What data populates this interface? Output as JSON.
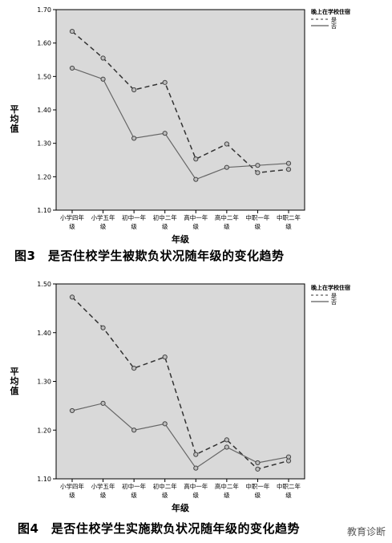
{
  "chart_data": [
    {
      "type": "line",
      "ylabel": "平均值",
      "xlabel": "年级",
      "legend_title": "晚上在学校住宿",
      "legend_position": "top-right",
      "categories": [
        "小学四年级",
        "小学五年级",
        "初中一年级",
        "初中二年级",
        "高中一年级",
        "高中二年级",
        "中职一年级",
        "中职二年级"
      ],
      "category_lines": [
        [
          "小学四年",
          "级"
        ],
        [
          "小学五年",
          "级"
        ],
        [
          "初中一年",
          "级"
        ],
        [
          "初中二年",
          "级"
        ],
        [
          "高中一年",
          "级"
        ],
        [
          "高中二年",
          "级"
        ],
        [
          "中职一年",
          "级"
        ],
        [
          "中职二年",
          "级"
        ]
      ],
      "yticks": [
        "1.10",
        "1.20",
        "1.30",
        "1.40",
        "1.50",
        "1.60",
        "1.70"
      ],
      "ylim": [
        1.1,
        1.7
      ],
      "series": [
        {
          "name": "是",
          "style": "dashed",
          "values": [
            1.635,
            1.555,
            1.46,
            1.482,
            1.253,
            1.298,
            1.212,
            1.222
          ]
        },
        {
          "name": "否",
          "style": "solid",
          "values": [
            1.525,
            1.492,
            1.315,
            1.33,
            1.192,
            1.228,
            1.234,
            1.24
          ]
        }
      ],
      "caption": "图3　是否住校学生被欺负状况随年级的变化趋势"
    },
    {
      "type": "line",
      "ylabel": "平均值",
      "xlabel": "年级",
      "legend_title": "晚上在学校住宿",
      "legend_position": "top-right",
      "categories": [
        "小学四年级",
        "小学五年级",
        "初中一年级",
        "初中二年级",
        "高中一年级",
        "高中二年级",
        "中职一年级",
        "中职二年级"
      ],
      "category_lines": [
        [
          "小学四年",
          "级"
        ],
        [
          "小学五年",
          "级"
        ],
        [
          "初中一年",
          "级"
        ],
        [
          "初中二年",
          "级"
        ],
        [
          "高中一年",
          "级"
        ],
        [
          "高中二年",
          "级"
        ],
        [
          "中职一年",
          "级"
        ],
        [
          "中职二年",
          "级"
        ]
      ],
      "yticks": [
        "1.10",
        "1.20",
        "1.30",
        "1.40",
        "1.50"
      ],
      "ylim": [
        1.1,
        1.5
      ],
      "series": [
        {
          "name": "是",
          "style": "dashed",
          "values": [
            1.473,
            1.41,
            1.327,
            1.35,
            1.15,
            1.18,
            1.12,
            1.137
          ]
        },
        {
          "name": "否",
          "style": "solid",
          "values": [
            1.24,
            1.255,
            1.2,
            1.213,
            1.122,
            1.165,
            1.133,
            1.145
          ]
        }
      ],
      "caption": "图4　是否住校学生实施欺负状况随年级的变化趋势"
    }
  ],
  "watermark": "教育诊断"
}
